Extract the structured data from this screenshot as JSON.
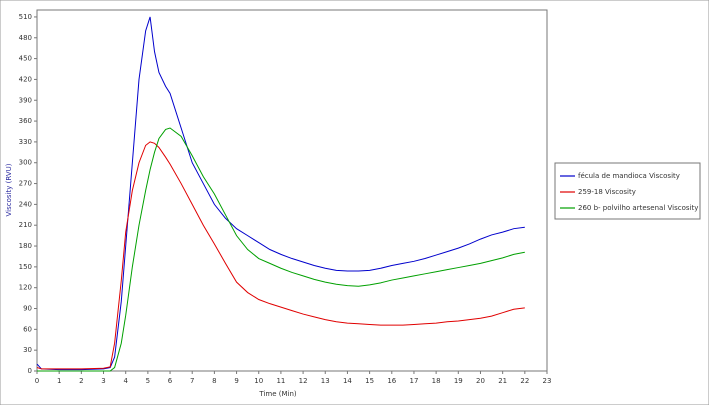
{
  "chart_data": {
    "type": "line",
    "x_label": "Time (Min)",
    "y_label": "Viscosity (RVU)",
    "x": [
      0,
      0.2,
      1,
      2,
      3,
      3.3,
      3.5,
      3.8,
      4,
      4.3,
      4.6,
      4.9,
      5.1,
      5.3,
      5.5,
      5.8,
      6,
      6.5,
      7,
      7.5,
      8,
      8.5,
      9,
      9.5,
      10,
      10.5,
      11,
      11.5,
      12,
      12.5,
      13,
      13.5,
      14,
      14.5,
      15,
      15.5,
      16,
      16.5,
      17,
      17.5,
      18,
      18.5,
      19,
      19.5,
      20,
      20.5,
      21,
      21.5,
      22
    ],
    "series": [
      {
        "name": "fécula de mandioca Viscosity",
        "color": "#0000cc",
        "values": [
          10,
          3,
          2,
          2,
          3,
          5,
          20,
          100,
          180,
          300,
          420,
          490,
          510,
          460,
          430,
          410,
          400,
          350,
          300,
          270,
          240,
          220,
          205,
          195,
          185,
          175,
          168,
          162,
          157,
          152,
          148,
          145,
          144,
          144,
          145,
          148,
          152,
          155,
          158,
          162,
          167,
          172,
          177,
          183,
          190,
          196,
          200,
          205,
          207
        ]
      },
      {
        "name": "259-18 Viscosity",
        "color": "#e00000",
        "values": [
          5,
          3,
          3,
          3,
          4,
          6,
          40,
          130,
          200,
          260,
          300,
          325,
          330,
          328,
          322,
          308,
          298,
          270,
          240,
          210,
          183,
          155,
          128,
          113,
          103,
          97,
          92,
          87,
          82,
          78,
          74,
          71,
          69,
          68,
          67,
          66,
          66,
          66,
          67,
          68,
          69,
          71,
          72,
          74,
          76,
          79,
          84,
          89,
          91
        ]
      },
      {
        "name": "260 b- polvilho artesenal Viscosity",
        "color": "#00a000",
        "values": [
          0,
          0,
          0,
          0,
          0,
          0,
          5,
          40,
          80,
          150,
          210,
          260,
          290,
          315,
          335,
          348,
          350,
          338,
          310,
          280,
          255,
          225,
          195,
          175,
          162,
          155,
          148,
          142,
          137,
          132,
          128,
          125,
          123,
          122,
          124,
          127,
          131,
          134,
          137,
          140,
          143,
          146,
          149,
          152,
          155,
          159,
          163,
          168,
          171
        ]
      }
    ],
    "xlim": [
      0,
      23
    ],
    "xticks": [
      0,
      1,
      2,
      3,
      4,
      5,
      6,
      7,
      8,
      9,
      10,
      11,
      12,
      13,
      14,
      15,
      16,
      17,
      18,
      19,
      20,
      21,
      22,
      23
    ],
    "ylim": [
      0,
      520
    ],
    "yticks": [
      0,
      30,
      60,
      90,
      120,
      150,
      180,
      210,
      240,
      270,
      300,
      330,
      360,
      390,
      420,
      450,
      480,
      510
    ],
    "legend": "right"
  }
}
